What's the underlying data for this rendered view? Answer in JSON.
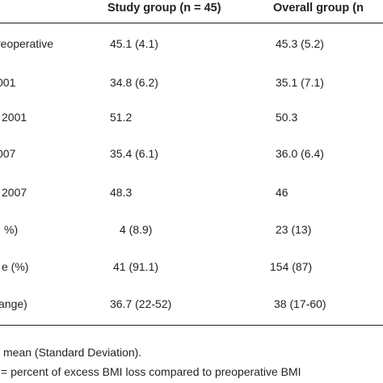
{
  "table": {
    "columns": {
      "study": "Study group (n = 45)",
      "overall": "Overall group (n"
    },
    "rows": [
      {
        "label": "reoperative",
        "study": "45.1 (4.1)",
        "overall": "45.3 (5.2)"
      },
      {
        "label": "001",
        "study": "34.8 (6.2)",
        "overall": "35.1 (7.1)"
      },
      {
        "label": "2001",
        "study": "51.2",
        "overall": "50.3"
      },
      {
        "label": "007",
        "study": "35.4 (6.1)",
        "overall": "36.0 (6.4)"
      },
      {
        "label": "2007",
        "study": "48.3",
        "overall": "46"
      },
      {
        "label": "%)",
        "study": "4 (8.9)",
        "overall": "23 (13)"
      },
      {
        "label": "e (%)",
        "study": "41 (91.1)",
        "overall": "154 (87)"
      },
      {
        "label": "ange)",
        "study": "36.7 (22-52)",
        "overall": "38 (17-60)"
      }
    ]
  },
  "footnotes": {
    "line1": "mean (Standard Deviation).",
    "line2": "= percent of excess BMI loss compared to preoperative BMI"
  }
}
